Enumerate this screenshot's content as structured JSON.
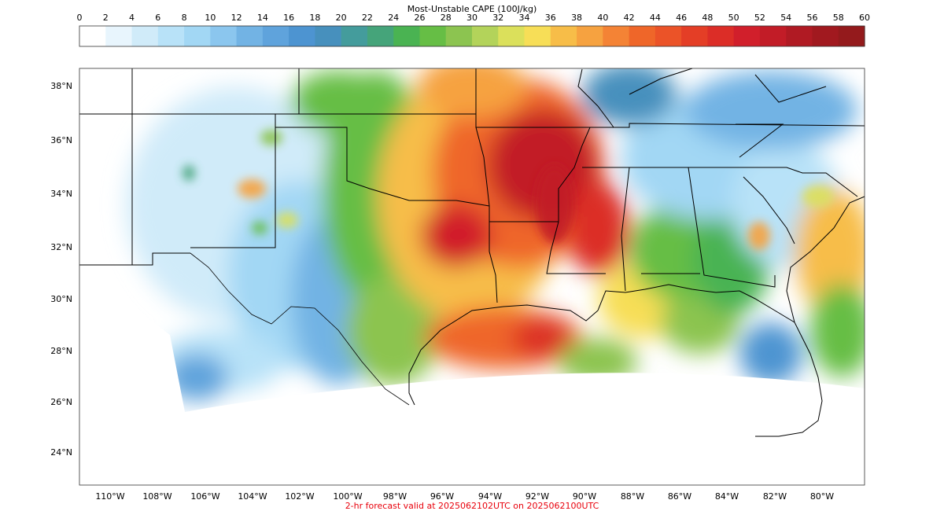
{
  "colorbar": {
    "title": "Most-Unstable CAPE (100J/kg)",
    "ticks": [
      "0",
      "2",
      "4",
      "6",
      "8",
      "10",
      "12",
      "14",
      "16",
      "18",
      "20",
      "22",
      "24",
      "26",
      "28",
      "30",
      "32",
      "34",
      "36",
      "38",
      "40",
      "42",
      "44",
      "46",
      "48",
      "50",
      "52",
      "54",
      "56",
      "58",
      "60"
    ],
    "colors": [
      "#ffffff",
      "#e8f5fd",
      "#d0ebf9",
      "#b8e2f8",
      "#a2d7f4",
      "#8bc6ee",
      "#72b3e4",
      "#5fa3dc",
      "#4d94d1",
      "#4790bd",
      "#449c9c",
      "#45a47a",
      "#4ab352",
      "#66be45",
      "#8cc450",
      "#b3d35a",
      "#dbe05b",
      "#f7de57",
      "#f7bd48",
      "#f6a240",
      "#f48335",
      "#ef6629",
      "#eb5328",
      "#e43e26",
      "#dc2d27",
      "#d11f2b",
      "#c21c27",
      "#b01a23",
      "#a1191f",
      "#941a1c"
    ]
  },
  "map": {
    "lat_labels": [
      "38°N",
      "36°N",
      "34°N",
      "32°N",
      "30°N",
      "28°N",
      "26°N",
      "24°N"
    ],
    "lon_labels": [
      "110°W",
      "108°W",
      "106°W",
      "104°W",
      "102°W",
      "100°W",
      "98°W",
      "96°W",
      "94°W",
      "92°W",
      "90°W",
      "88°W",
      "86°W",
      "84°W",
      "82°W",
      "80°W"
    ]
  },
  "caption": "2-hr forecast valid at 2025062102UTC on 2025062100UTC"
}
